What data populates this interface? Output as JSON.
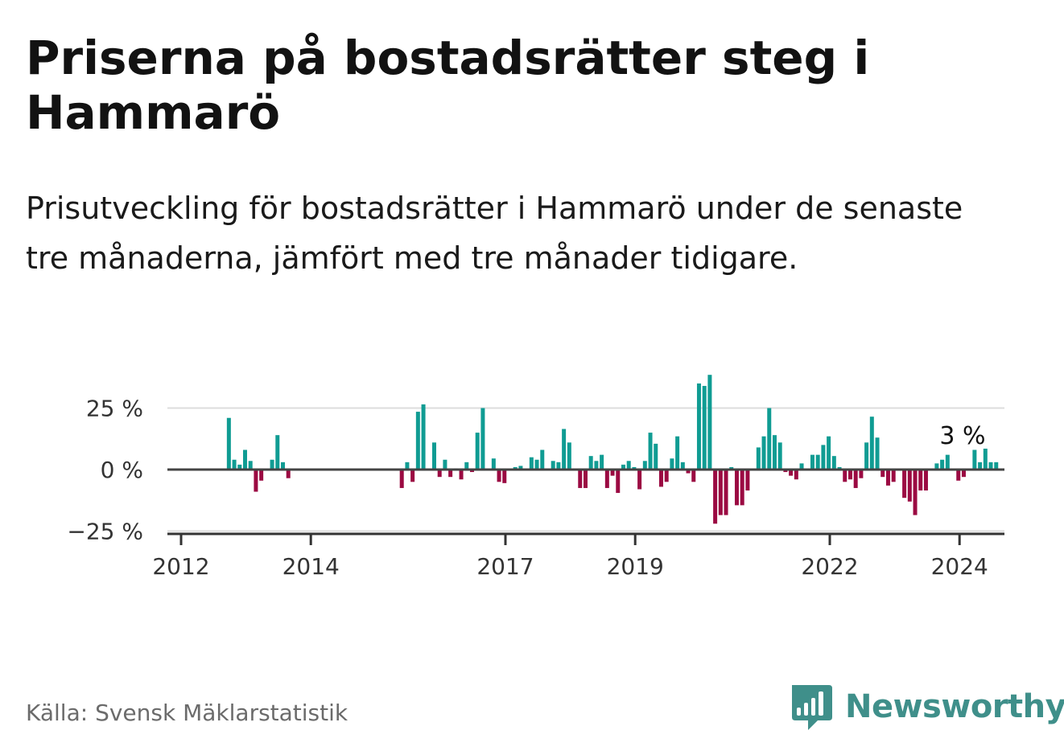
{
  "title": "Priserna på bostadsrätter steg i Hammarö",
  "subtitle": "Prisutveckling för bostadsrätter i Hammarö under de senaste tre månaderna, jämfört med tre månader tidigare.",
  "source": "Källa: Svensk Mäklarstatistik",
  "brand": {
    "name": "Newsworthy",
    "icon": "newsworthy-logo-icon",
    "color": "#3f8f8a"
  },
  "colors": {
    "positive": "#109c93",
    "negative": "#9b0a42",
    "zero_line": "#444444",
    "grid": "#dddddd",
    "axis": "#333333"
  },
  "chart_data": {
    "type": "bar",
    "title": "Priserna på bostadsrätter steg i Hammarö",
    "unit": "%",
    "x_start": 2012.0,
    "step": 0.0833,
    "ylim": [
      -25,
      40
    ],
    "yticks": [
      {
        "value": 25,
        "label": "25 %"
      },
      {
        "value": 0,
        "label": "0 %"
      },
      {
        "value": -25,
        "label": "−25 %"
      }
    ],
    "xticks": [
      {
        "value": 2012,
        "label": "2012"
      },
      {
        "value": 2014,
        "label": "2014"
      },
      {
        "value": 2017,
        "label": "2017"
      },
      {
        "value": 2019,
        "label": "2019"
      },
      {
        "value": 2022,
        "label": "2022"
      },
      {
        "value": 2024,
        "label": "2024"
      }
    ],
    "last_value_label": "3 %",
    "values": [
      null,
      null,
      null,
      null,
      21,
      4,
      2,
      8,
      3.5,
      -9,
      -4.5,
      0,
      4,
      14,
      3,
      -3.5,
      null,
      null,
      null,
      null,
      null,
      null,
      null,
      null,
      null,
      null,
      null,
      null,
      null,
      null,
      null,
      null,
      null,
      null,
      null,
      null,
      -7.5,
      3,
      -5,
      23.5,
      26.5,
      0,
      11,
      -3,
      4,
      -3,
      0.5,
      -4,
      3,
      -1,
      15,
      25,
      0,
      4.5,
      -5,
      -5.5,
      0,
      1,
      1.5,
      0,
      5,
      4,
      8,
      0,
      3.5,
      3,
      16.5,
      11,
      0,
      -7.5,
      -7.5,
      5.5,
      3.5,
      6,
      -7.5,
      -2.5,
      -9.5,
      2,
      3.5,
      1,
      -8,
      3.5,
      15,
      10.5,
      -7,
      -5,
      4.5,
      13.5,
      3,
      -1.5,
      -5,
      35,
      34,
      38.5,
      -22,
      -18.5,
      -18.5,
      1,
      -14.5,
      -14.5,
      -8.5,
      0,
      9,
      13.5,
      25,
      14,
      11,
      -1,
      -2.5,
      -4,
      2.5,
      0,
      6,
      6,
      10,
      13.5,
      5.5,
      1,
      -5,
      -4,
      -7.5,
      -3.5,
      11,
      21.5,
      13,
      -3,
      -6.5,
      -5,
      0,
      -11.5,
      -13,
      -18.5,
      -8.5,
      -8.5,
      0,
      2.5,
      4,
      6,
      0,
      -4.5,
      -3,
      0,
      8,
      3,
      8.5,
      3,
      3
    ]
  }
}
